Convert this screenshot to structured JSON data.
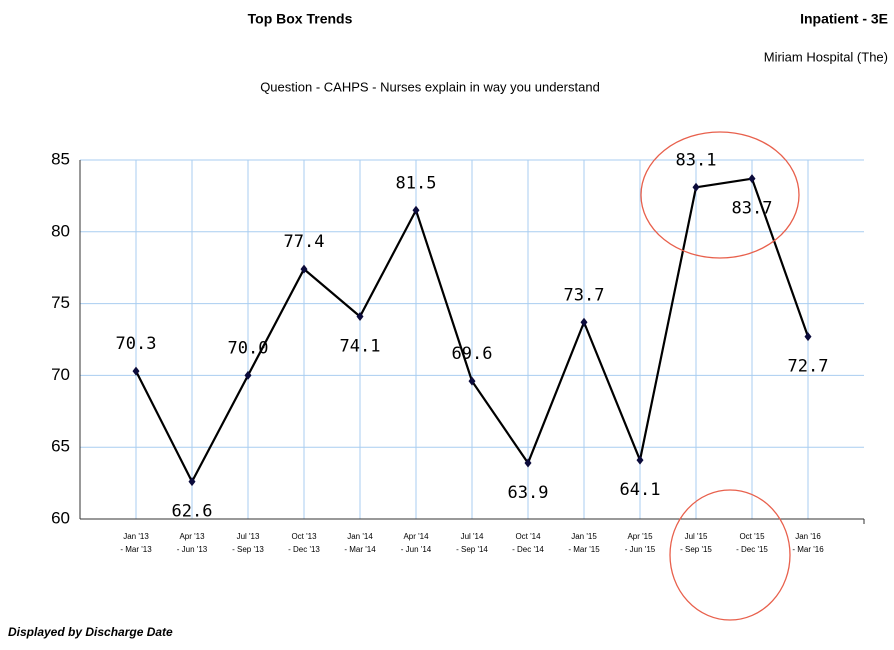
{
  "header": {
    "title": "Top Box Trends",
    "unit": "Inpatient - 3E",
    "facility": "Miriam Hospital (The)",
    "question": "Question - CAHPS - Nurses explain in way you understand"
  },
  "chart_data": {
    "type": "line",
    "categories": [
      [
        "Jan '13",
        "- Mar '13"
      ],
      [
        "Apr '13",
        "- Jun '13"
      ],
      [
        "Jul '13",
        "- Sep '13"
      ],
      [
        "Oct '13",
        "- Dec '13"
      ],
      [
        "Jan '14",
        "- Mar '14"
      ],
      [
        "Apr '14",
        "- Jun '14"
      ],
      [
        "Jul '14",
        "- Sep '14"
      ],
      [
        "Oct '14",
        "- Dec '14"
      ],
      [
        "Jan '15",
        "- Mar '15"
      ],
      [
        "Apr '15",
        "- Jun '15"
      ],
      [
        "Jul '15",
        "- Sep '15"
      ],
      [
        "Oct '15",
        "- Dec '15"
      ],
      [
        "Jan '16",
        "- Mar '16"
      ]
    ],
    "values": [
      70.3,
      62.6,
      70.0,
      77.4,
      74.1,
      81.5,
      69.6,
      63.9,
      73.7,
      64.1,
      83.1,
      83.7,
      72.7
    ],
    "value_labels": [
      "70.3",
      "62.6",
      "70.0",
      "77.4",
      "74.1",
      "81.5",
      "69.6",
      "63.9",
      "73.7",
      "64.1",
      "83.1",
      "83.7",
      "72.7"
    ],
    "color": "#000000",
    "marker_color": "#0b0b3b",
    "ylim": [
      60,
      85
    ],
    "yticks": [
      60,
      65,
      70,
      75,
      80,
      85
    ],
    "grid": true
  },
  "footer": "Displayed by Discharge Date"
}
